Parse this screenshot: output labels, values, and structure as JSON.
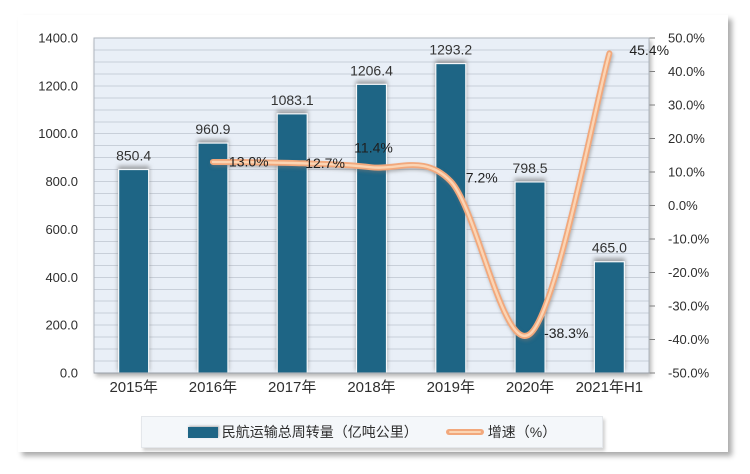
{
  "chart_data": {
    "type": "bar",
    "subtype": "bar-line-combo",
    "categories": [
      "2015年",
      "2016年",
      "2017年",
      "2018年",
      "2019年",
      "2020年",
      "2021年H1"
    ],
    "series": [
      {
        "name": "民航运输总周转量（亿吨公里）",
        "type": "bar",
        "axis": "left",
        "color": "#1e6585",
        "values": [
          850.4,
          960.9,
          1083.1,
          1206.4,
          1293.2,
          798.5,
          465.0
        ],
        "labels": [
          "850.4",
          "960.9",
          "1083.1",
          "1206.4",
          "1293.2",
          "798.5",
          "465.0"
        ]
      },
      {
        "name": "增速（%）",
        "type": "line",
        "axis": "right",
        "color": "#f2a87c",
        "smooth": true,
        "values": [
          null,
          13.0,
          12.7,
          11.4,
          7.2,
          -38.3,
          45.4
        ],
        "labels": [
          null,
          "13.0%",
          "12.7%",
          "11.4%",
          "7.2%",
          "-38.3%",
          "45.4%"
        ]
      }
    ],
    "left_axis": {
      "min": 0,
      "max": 1400,
      "step": 200,
      "minor_step": 50,
      "tick_labels": [
        "1400.0",
        "1200.0",
        "1000.0",
        "800.0",
        "600.0",
        "400.0",
        "200.0",
        "0.0"
      ]
    },
    "right_axis": {
      "min": -50,
      "max": 50,
      "step": 10,
      "tick_labels": [
        "50.0%",
        "40.0%",
        "30.0%",
        "20.0%",
        "10.0%",
        "0.0%",
        "-10.0%",
        "-20.0%",
        "-30.0%",
        "-40.0%",
        "-50.0%"
      ]
    },
    "grid": true,
    "legend_position": "bottom",
    "title": "",
    "xlabel": "",
    "ylabel": "",
    "plot_bg_color": "#e9eff7",
    "gridline_color": "#c8cfd9",
    "legend": {
      "items": [
        {
          "label": "民航运输总周转量（亿吨公里）",
          "swatch": "bar",
          "color": "#1e6585"
        },
        {
          "label": "增速（%）",
          "swatch": "line",
          "color": "#f2a87c"
        }
      ]
    }
  }
}
